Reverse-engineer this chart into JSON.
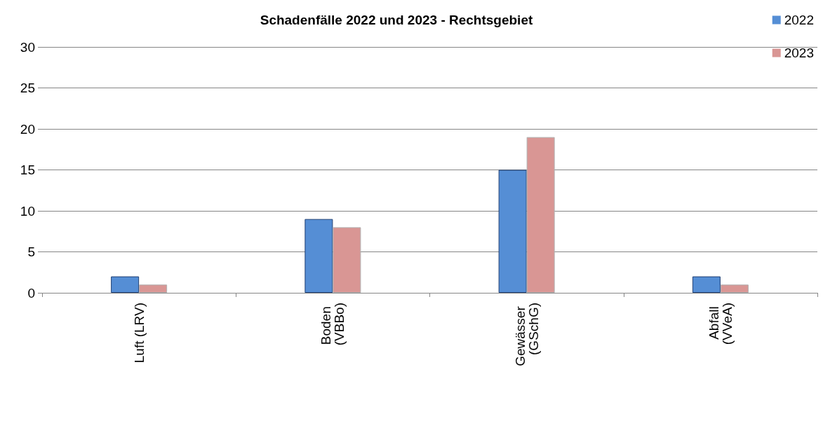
{
  "chart_data": {
    "type": "bar",
    "title": "Schadenfälle 2022 und 2023 - Rechtsgebiet",
    "categories": [
      "Luft (LRV)",
      "Boden (VBBo)",
      "Gewässer (GSchG)",
      "Abfall (VVeA)"
    ],
    "series": [
      {
        "name": "2022",
        "color": "#558ed5",
        "values": [
          2,
          9,
          15,
          2
        ]
      },
      {
        "name": "2023",
        "color": "#d99694",
        "values": [
          1,
          8,
          19,
          1
        ]
      }
    ],
    "ylim": [
      0,
      30
    ],
    "yticks": [
      0,
      5,
      10,
      15,
      20,
      25,
      30
    ],
    "grid": "y",
    "legend": "top right"
  }
}
